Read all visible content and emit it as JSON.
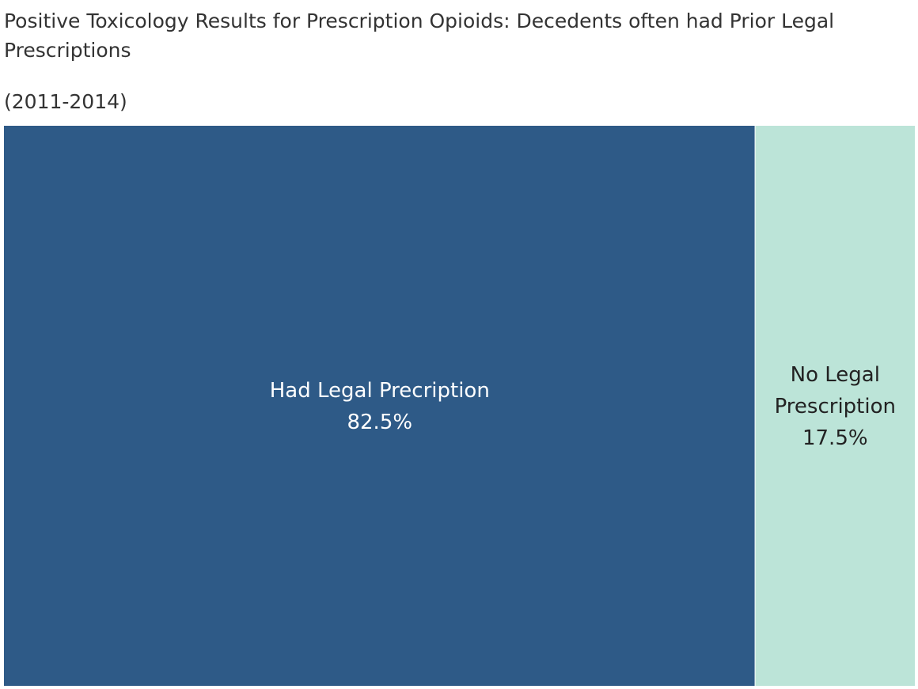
{
  "chart_data": {
    "type": "treemap",
    "title": "Positive Toxicology Results for Prescription Opioids: Decedents often had Prior Legal Prescriptions",
    "subtitle": "(2011-2014)",
    "categories": [
      "Had Legal Precription",
      "No Legal Prescription"
    ],
    "values": [
      82.5,
      17.5
    ],
    "value_labels": [
      "82.5%",
      "17.5%"
    ],
    "unit": "%",
    "colors": [
      "#2e5a87",
      "#bce4d8"
    ],
    "label_colors": [
      "#ffffff",
      "#222222"
    ],
    "label_lines": [
      [
        "Had Legal Precription",
        "82.5%"
      ],
      [
        "No Legal",
        "Prescription",
        "17.5%"
      ]
    ],
    "legend": "none",
    "grid": false
  }
}
